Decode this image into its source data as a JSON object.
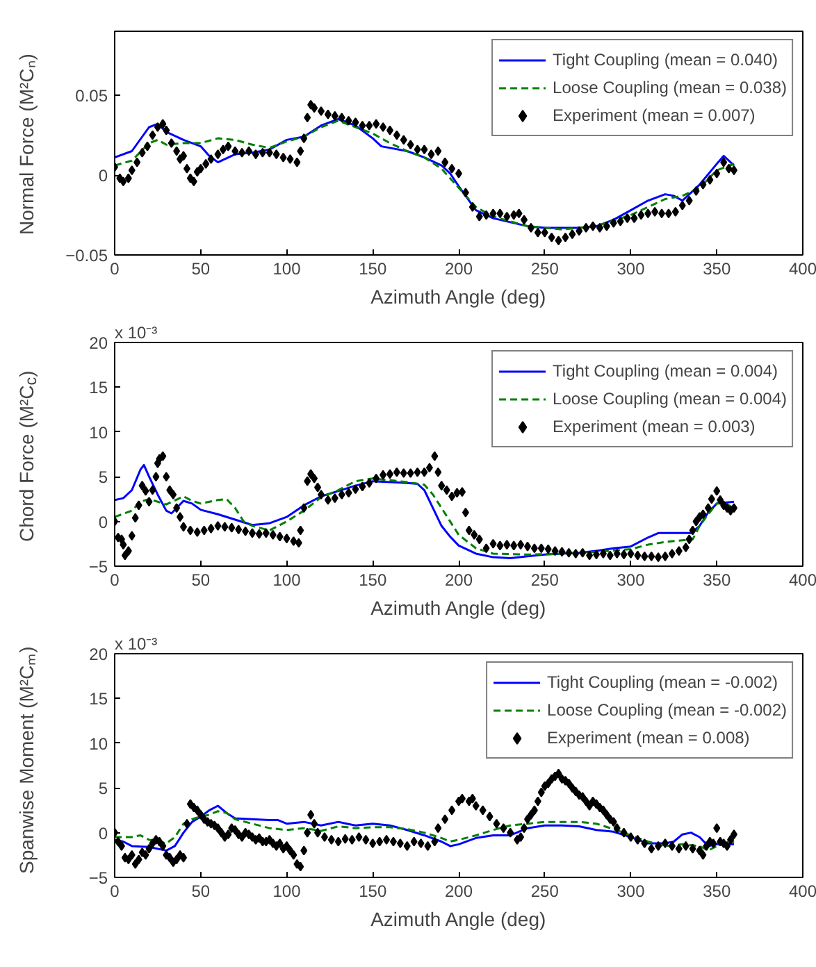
{
  "chart_data": [
    {
      "type": "line",
      "xlabel": "Azimuth Angle (deg)",
      "ylabel": "Normal Force (M²Cₙ)",
      "xlim": [
        0,
        400
      ],
      "xticks": [
        0,
        50,
        100,
        150,
        200,
        250,
        300,
        350,
        400
      ],
      "ylim": [
        -0.05,
        0.09
      ],
      "yticks": [
        -0.05,
        0,
        0.05
      ],
      "grid": false,
      "legend": "top right",
      "series": [
        {
          "name": "Tight Coupling (mean = 0.040)",
          "color": "#0000ff",
          "line_style": "solid",
          "x": [
            0,
            10,
            20,
            25,
            30,
            40,
            50,
            55,
            60,
            70,
            80,
            90,
            100,
            110,
            120,
            130,
            140,
            150,
            155,
            170,
            180,
            190,
            195,
            200,
            210,
            220,
            240,
            250,
            270,
            280,
            290,
            300,
            310,
            320,
            325,
            330,
            340,
            350,
            354,
            360
          ],
          "values": [
            0.011,
            0.015,
            0.03,
            0.032,
            0.027,
            0.022,
            0.018,
            0.012,
            0.008,
            0.013,
            0.014,
            0.016,
            0.022,
            0.024,
            0.031,
            0.035,
            0.031,
            0.023,
            0.018,
            0.015,
            0.011,
            0.006,
            0.001,
            -0.007,
            -0.022,
            -0.027,
            -0.032,
            -0.033,
            -0.033,
            -0.032,
            -0.028,
            -0.022,
            -0.016,
            -0.012,
            -0.013,
            -0.016,
            -0.006,
            0.007,
            0.012,
            0.006
          ]
        },
        {
          "name": "Loose Coupling (mean = 0.038)",
          "color": "#008000",
          "line_style": "dashed",
          "x": [
            0,
            10,
            20,
            25,
            30,
            40,
            50,
            60,
            70,
            80,
            90,
            100,
            110,
            120,
            130,
            140,
            150,
            160,
            170,
            180,
            190,
            200,
            210,
            220,
            240,
            260,
            280,
            300,
            320,
            330,
            340,
            350,
            360
          ],
          "values": [
            0.006,
            0.009,
            0.02,
            0.022,
            0.019,
            0.02,
            0.02,
            0.023,
            0.022,
            0.019,
            0.017,
            0.021,
            0.024,
            0.03,
            0.034,
            0.03,
            0.026,
            0.02,
            0.015,
            0.011,
            0.004,
            -0.008,
            -0.02,
            -0.026,
            -0.032,
            -0.034,
            -0.032,
            -0.025,
            -0.015,
            -0.013,
            -0.008,
            0.003,
            0.007
          ]
        },
        {
          "name": "Experiment (mean = 0.007)",
          "color": "#000000",
          "type": "scatter",
          "marker": "diamond",
          "x": [
            0,
            3,
            5,
            8,
            10,
            13,
            16,
            19,
            22,
            25,
            28,
            30,
            33,
            36,
            38,
            40,
            42,
            44,
            46,
            48,
            50,
            53,
            56,
            60,
            63,
            66,
            70,
            74,
            78,
            82,
            86,
            90,
            94,
            98,
            102,
            106,
            108,
            110,
            112,
            114,
            116,
            120,
            124,
            128,
            132,
            136,
            140,
            144,
            148,
            152,
            156,
            160,
            164,
            168,
            172,
            176,
            180,
            184,
            188,
            192,
            196,
            200,
            204,
            208,
            212,
            216,
            220,
            224,
            228,
            232,
            235,
            238,
            242,
            246,
            250,
            254,
            258,
            262,
            266,
            270,
            274,
            278,
            282,
            286,
            290,
            294,
            298,
            302,
            306,
            310,
            314,
            318,
            322,
            326,
            330,
            334,
            338,
            342,
            346,
            350,
            354,
            357,
            360
          ],
          "values": [
            0.005,
            -0.002,
            -0.004,
            -0.002,
            0.003,
            0.008,
            0.014,
            0.018,
            0.025,
            0.03,
            0.032,
            0.028,
            0.02,
            0.015,
            0.01,
            0.012,
            0.004,
            -0.002,
            -0.004,
            0.002,
            0.004,
            0.007,
            0.01,
            0.013,
            0.016,
            0.018,
            0.015,
            0.014,
            0.015,
            0.013,
            0.014,
            0.014,
            0.013,
            0.011,
            0.01,
            0.008,
            0.015,
            0.023,
            0.036,
            0.044,
            0.042,
            0.04,
            0.038,
            0.037,
            0.036,
            0.034,
            0.033,
            0.031,
            0.031,
            0.032,
            0.03,
            0.028,
            0.025,
            0.022,
            0.019,
            0.016,
            0.016,
            0.013,
            0.015,
            0.008,
            0.004,
            0.001,
            -0.011,
            -0.02,
            -0.026,
            -0.025,
            -0.024,
            -0.024,
            -0.026,
            -0.025,
            -0.024,
            -0.028,
            -0.033,
            -0.036,
            -0.036,
            -0.039,
            -0.041,
            -0.039,
            -0.037,
            -0.035,
            -0.033,
            -0.032,
            -0.033,
            -0.032,
            -0.03,
            -0.029,
            -0.027,
            -0.027,
            -0.025,
            -0.024,
            -0.023,
            -0.024,
            -0.024,
            -0.023,
            -0.019,
            -0.016,
            -0.01,
            -0.006,
            -0.003,
            0.001,
            0.008,
            0.004,
            0.003
          ]
        }
      ]
    },
    {
      "type": "line",
      "xlabel": "Azimuth Angle (deg)",
      "ylabel": "Chord Force (M²C$_{c}$)",
      "annotations": [
        "x 10⁻³"
      ],
      "xlim": [
        0,
        400
      ],
      "xticks": [
        0,
        50,
        100,
        150,
        200,
        250,
        300,
        350,
        400
      ],
      "ylim": [
        -5,
        20
      ],
      "yticks": [
        -5,
        0,
        5,
        10,
        15,
        20
      ],
      "grid": false,
      "legend": "top right",
      "series": [
        {
          "name": "Tight Coupling (mean = 0.004)",
          "color": "#0000ff",
          "line_style": "solid",
          "x": [
            0,
            5,
            10,
            15,
            17,
            20,
            25,
            30,
            33,
            40,
            45,
            50,
            60,
            70,
            80,
            85,
            90,
            100,
            110,
            120,
            130,
            140,
            150,
            160,
            170,
            176,
            180,
            185,
            190,
            195,
            200,
            210,
            220,
            230,
            240,
            250,
            260,
            270,
            280,
            290,
            300,
            310,
            316,
            320,
            335,
            340,
            345,
            350,
            355,
            360
          ],
          "values": [
            2.4,
            2.6,
            3.5,
            5.8,
            6.3,
            5.0,
            3.0,
            1.2,
            0.9,
            2.3,
            2.0,
            1.3,
            0.8,
            0.2,
            -0.4,
            -0.3,
            -0.2,
            0.5,
            1.8,
            2.8,
            3.4,
            4.0,
            4.5,
            4.4,
            4.3,
            4.2,
            3.5,
            1.5,
            -0.5,
            -1.7,
            -2.7,
            -3.6,
            -4.0,
            -4.1,
            -3.9,
            -3.7,
            -3.6,
            -3.5,
            -3.3,
            -3.0,
            -2.8,
            -1.8,
            -1.3,
            -1.3,
            -1.3,
            -0.5,
            1.0,
            2.0,
            2.1,
            2.2
          ]
        },
        {
          "name": "Loose Coupling (mean = 0.004)",
          "color": "#008000",
          "line_style": "dashed",
          "x": [
            0,
            10,
            15,
            20,
            25,
            30,
            40,
            45,
            50,
            60,
            65,
            70,
            75,
            80,
            90,
            100,
            110,
            120,
            130,
            140,
            150,
            160,
            170,
            180,
            185,
            190,
            195,
            200,
            210,
            220,
            240,
            260,
            280,
            300,
            310,
            320,
            330,
            336,
            340,
            345,
            350,
            355,
            360
          ],
          "values": [
            0.5,
            1.2,
            2.2,
            2.5,
            2.2,
            1.9,
            2.8,
            2.3,
            2.0,
            2.4,
            2.5,
            1.5,
            0.0,
            -0.5,
            -1.0,
            0.0,
            1.2,
            2.7,
            3.5,
            4.5,
            4.8,
            4.6,
            4.4,
            4.1,
            3.0,
            1.5,
            0.0,
            -1.5,
            -3.0,
            -3.6,
            -3.7,
            -3.6,
            -3.4,
            -3.1,
            -2.6,
            -2.3,
            -2.1,
            -2.0,
            -0.5,
            0.8,
            2.0,
            2.0,
            1.5
          ]
        },
        {
          "name": "Experiment (mean = 0.003)",
          "color": "#000000",
          "type": "scatter",
          "marker": "diamond",
          "x": [
            0,
            2,
            4,
            5,
            6,
            8,
            10,
            12,
            14,
            16,
            18,
            20,
            22,
            24,
            25,
            26,
            28,
            30,
            32,
            34,
            36,
            38,
            40,
            44,
            48,
            52,
            56,
            60,
            64,
            68,
            72,
            76,
            80,
            84,
            88,
            92,
            96,
            100,
            104,
            107,
            108,
            110,
            112,
            114,
            116,
            118,
            120,
            124,
            128,
            132,
            136,
            140,
            144,
            148,
            152,
            156,
            160,
            164,
            168,
            172,
            176,
            180,
            183,
            186,
            188,
            190,
            193,
            196,
            199,
            202,
            204,
            206,
            209,
            212,
            216,
            220,
            224,
            228,
            232,
            236,
            240,
            244,
            248,
            252,
            256,
            260,
            264,
            268,
            272,
            276,
            280,
            284,
            288,
            292,
            296,
            300,
            304,
            308,
            312,
            316,
            320,
            324,
            328,
            332,
            334,
            336,
            338,
            340,
            342,
            345,
            347,
            350,
            352,
            354,
            356,
            358,
            360
          ],
          "values": [
            0.0,
            -1.8,
            -2.0,
            -2.6,
            -3.8,
            -3.3,
            -1.6,
            0.4,
            1.8,
            4.0,
            3.4,
            2.2,
            3.5,
            5.0,
            6.5,
            7.0,
            7.3,
            5.0,
            3.5,
            3.0,
            1.5,
            0.5,
            -0.6,
            -1.0,
            -1.2,
            -1.0,
            -0.8,
            -0.5,
            -0.6,
            -0.7,
            -0.9,
            -1.1,
            -1.3,
            -1.4,
            -1.3,
            -1.5,
            -1.7,
            -1.9,
            -2.2,
            -2.4,
            -1.0,
            1.5,
            4.5,
            5.3,
            4.8,
            3.8,
            3.0,
            2.4,
            2.6,
            3.0,
            3.2,
            3.6,
            3.9,
            4.3,
            4.8,
            5.2,
            5.3,
            5.5,
            5.4,
            5.4,
            5.5,
            5.5,
            6.0,
            7.3,
            5.5,
            4.0,
            3.5,
            2.8,
            3.2,
            3.3,
            1.0,
            -1.0,
            -1.5,
            -2.0,
            -3.0,
            -2.5,
            -2.7,
            -2.6,
            -2.7,
            -2.6,
            -2.8,
            -3.0,
            -3.0,
            -3.1,
            -3.3,
            -3.4,
            -3.5,
            -3.6,
            -3.5,
            -3.8,
            -3.7,
            -3.6,
            -3.8,
            -3.6,
            -3.7,
            -3.6,
            -3.8,
            -3.9,
            -3.9,
            -4.0,
            -3.9,
            -3.6,
            -3.3,
            -2.9,
            -2.0,
            -1.0,
            0.0,
            0.5,
            0.8,
            1.5,
            2.5,
            3.4,
            2.4,
            1.8,
            1.5,
            1.2,
            1.5
          ]
        }
      ]
    },
    {
      "type": "line",
      "xlabel": "Azimuth Angle (deg)",
      "ylabel": "Spanwise Moment (M²Cₘ)",
      "annotations": [
        "x 10⁻³"
      ],
      "xlim": [
        0,
        400
      ],
      "xticks": [
        0,
        50,
        100,
        150,
        200,
        250,
        300,
        350,
        400
      ],
      "ylim": [
        -5,
        20
      ],
      "yticks": [
        -5,
        0,
        5,
        10,
        15,
        20
      ],
      "grid": false,
      "legend": "top right",
      "series": [
        {
          "name": "Tight Coupling (mean = -0.002)",
          "color": "#0000ff",
          "line_style": "solid",
          "x": [
            0,
            5,
            10,
            20,
            30,
            35,
            40,
            45,
            50,
            55,
            60,
            65,
            70,
            80,
            90,
            95,
            100,
            110,
            120,
            130,
            135,
            140,
            150,
            160,
            170,
            180,
            190,
            195,
            200,
            210,
            220,
            230,
            240,
            250,
            260,
            270,
            280,
            290,
            300,
            310,
            320,
            325,
            330,
            335,
            340,
            345,
            350,
            360
          ],
          "values": [
            -0.8,
            -1.0,
            -1.5,
            -1.6,
            -2.0,
            -1.5,
            0.0,
            1.2,
            1.8,
            2.5,
            3.0,
            2.2,
            1.6,
            1.5,
            1.4,
            1.4,
            1.0,
            1.2,
            0.8,
            1.2,
            1.0,
            0.8,
            1.0,
            0.8,
            0.3,
            -0.3,
            -1.0,
            -1.5,
            -1.3,
            -0.6,
            -0.3,
            -0.3,
            0.5,
            0.8,
            0.8,
            0.7,
            0.3,
            0.1,
            -0.5,
            -1.2,
            -1.2,
            -1.0,
            -0.2,
            0.0,
            -0.5,
            -1.5,
            -1.3,
            -1.3
          ]
        },
        {
          "name": "Loose Coupling (mean = -0.002)",
          "color": "#008000",
          "line_style": "dashed",
          "x": [
            0,
            10,
            15,
            20,
            30,
            35,
            40,
            45,
            50,
            55,
            60,
            65,
            70,
            80,
            90,
            100,
            110,
            120,
            130,
            140,
            150,
            160,
            170,
            180,
            190,
            195,
            200,
            210,
            220,
            230,
            240,
            250,
            260,
            270,
            280,
            290,
            300,
            310,
            320,
            330,
            340,
            345,
            350,
            360
          ],
          "values": [
            -0.5,
            -0.5,
            -0.3,
            -0.8,
            -1.2,
            -0.5,
            1.0,
            1.5,
            1.8,
            2.0,
            2.4,
            2.2,
            1.5,
            1.0,
            0.5,
            0.3,
            0.5,
            0.2,
            0.7,
            0.5,
            0.6,
            0.6,
            0.4,
            0.0,
            -0.6,
            -1.0,
            -0.8,
            -0.3,
            0.3,
            0.8,
            1.0,
            1.2,
            1.2,
            1.2,
            1.0,
            0.4,
            -0.3,
            -1.0,
            -1.5,
            -1.3,
            -1.5,
            -2.0,
            -1.5,
            -1.0
          ]
        },
        {
          "name": "Experiment (mean = 0.008)",
          "color": "#000000",
          "type": "scatter",
          "marker": "diamond",
          "x": [
            0,
            2,
            4,
            6,
            8,
            10,
            12,
            14,
            16,
            18,
            20,
            22,
            24,
            26,
            28,
            30,
            32,
            34,
            36,
            38,
            40,
            42,
            44,
            46,
            48,
            50,
            52,
            54,
            56,
            58,
            60,
            62,
            64,
            66,
            68,
            70,
            72,
            74,
            76,
            78,
            80,
            82,
            84,
            86,
            88,
            90,
            92,
            94,
            96,
            98,
            100,
            102,
            104,
            106,
            108,
            110,
            112,
            114,
            116,
            118,
            122,
            126,
            130,
            134,
            138,
            142,
            146,
            150,
            154,
            158,
            162,
            166,
            170,
            174,
            178,
            182,
            186,
            188,
            192,
            196,
            200,
            202,
            206,
            208,
            210,
            214,
            218,
            222,
            226,
            230,
            234,
            236,
            238,
            240,
            242,
            244,
            246,
            248,
            250,
            252,
            254,
            256,
            258,
            260,
            262,
            264,
            266,
            268,
            270,
            272,
            274,
            276,
            278,
            280,
            282,
            284,
            286,
            288,
            290,
            292,
            296,
            300,
            304,
            308,
            312,
            316,
            320,
            324,
            328,
            332,
            336,
            340,
            342,
            344,
            346,
            348,
            350,
            352,
            354,
            356,
            358,
            360
          ],
          "values": [
            0.0,
            -1.0,
            -1.5,
            -2.8,
            -3.0,
            -2.5,
            -3.5,
            -3.0,
            -2.2,
            -2.5,
            -1.8,
            -1.2,
            -0.8,
            -1.0,
            -1.5,
            -2.5,
            -2.8,
            -3.3,
            -3.0,
            -2.5,
            -2.8,
            1.0,
            3.2,
            2.8,
            2.5,
            2.0,
            1.5,
            1.2,
            1.0,
            0.8,
            0.5,
            0.0,
            -0.5,
            -0.2,
            0.5,
            0.3,
            -0.2,
            -0.5,
            0.0,
            -0.2,
            -0.5,
            -0.8,
            -0.6,
            -1.0,
            -1.0,
            -0.8,
            -1.2,
            -1.5,
            -1.2,
            -1.8,
            -1.5,
            -2.0,
            -2.5,
            -3.5,
            -3.8,
            -2.0,
            0.0,
            2.0,
            1.0,
            0.0,
            -0.5,
            -0.8,
            -1.0,
            -0.7,
            -0.8,
            -0.5,
            -0.8,
            -1.2,
            -1.0,
            -0.8,
            -1.0,
            -1.2,
            -1.5,
            -1.0,
            -1.2,
            -1.5,
            -1.0,
            0.5,
            1.5,
            2.5,
            3.5,
            3.8,
            3.5,
            3.8,
            3.0,
            2.5,
            1.8,
            1.0,
            0.5,
            0.0,
            -0.8,
            -0.5,
            0.5,
            1.5,
            2.0,
            2.5,
            3.5,
            4.5,
            5.2,
            5.5,
            6.0,
            6.3,
            6.6,
            6.0,
            5.8,
            5.5,
            5.0,
            4.6,
            4.2,
            4.0,
            3.5,
            3.0,
            3.5,
            3.2,
            2.8,
            2.5,
            2.0,
            1.5,
            1.2,
            0.5,
            0.0,
            -0.5,
            -0.8,
            -1.2,
            -1.8,
            -1.5,
            -1.2,
            -1.5,
            -1.8,
            -1.5,
            -1.8,
            -2.0,
            -2.5,
            -1.5,
            -1.0,
            -1.2,
            0.5,
            -1.0,
            -1.2,
            -1.5,
            -0.8,
            -0.2
          ]
        }
      ]
    }
  ]
}
